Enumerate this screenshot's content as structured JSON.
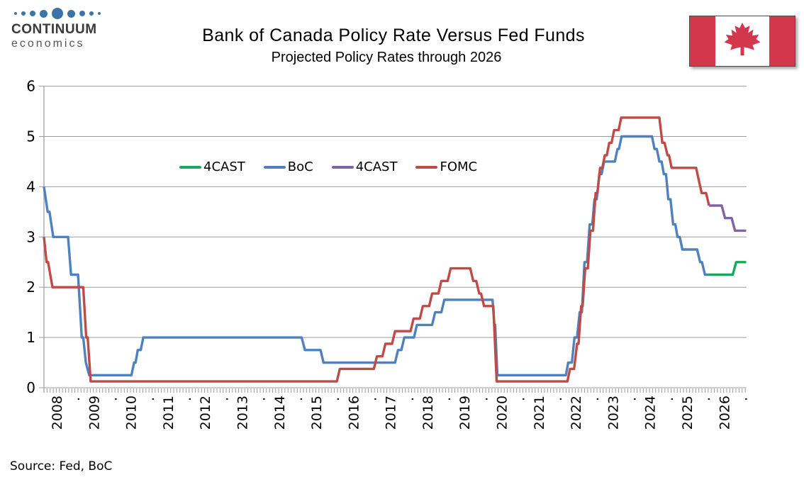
{
  "header": {
    "logo": {
      "line1": "CONTINUUM",
      "line2": "economics",
      "dot_color": "#3c74a8",
      "dot_sizes": [
        4,
        6,
        8,
        11,
        16,
        11,
        8,
        6,
        4
      ]
    },
    "title": "Bank of Canada Policy Rate Versus Fed Funds",
    "subtitle": "Projected Policy Rates through 2026",
    "flag": {
      "band_color": "#d2374c",
      "leaf_color": "#d2374c"
    }
  },
  "source_note": "Source: Fed, BoC",
  "chart_data": {
    "type": "line",
    "title": "Bank of Canada Policy Rate Versus Fed Funds",
    "subtitle": "Projected Policy Rates through 2026",
    "xlabel": "",
    "ylabel": "",
    "xlim": [
      2008,
      2026.95
    ],
    "ylim": [
      0,
      6
    ],
    "yticks": [
      0,
      1,
      2,
      3,
      4,
      5,
      6
    ],
    "x_year_labels": [
      2008,
      2009,
      2010,
      2011,
      2012,
      2013,
      2014,
      2015,
      2016,
      2017,
      2018,
      2019,
      2020,
      2021,
      2022,
      2023,
      2024,
      2025,
      2026
    ],
    "x_between_year_marker": ".",
    "x_minor_tick_interval_years": 0.08333,
    "grid": true,
    "grid_color": "#9b9b9b",
    "legend_position": "inside-upper-left",
    "legend": [
      {
        "label": "4CAST",
        "color": "#17a95b"
      },
      {
        "label": "BoC",
        "color": "#4e81bd"
      },
      {
        "label": "4CAST",
        "color": "#7f63a3"
      },
      {
        "label": "FOMC",
        "color": "#be4b48"
      }
    ],
    "series": [
      {
        "name": "BoC",
        "color": "#4e81bd",
        "points": [
          [
            2008.0,
            4.0
          ],
          [
            2008.1,
            3.5
          ],
          [
            2008.15,
            3.5
          ],
          [
            2008.25,
            3.0
          ],
          [
            2008.65,
            3.0
          ],
          [
            2008.73,
            2.25
          ],
          [
            2008.92,
            2.25
          ],
          [
            2009.02,
            1.0
          ],
          [
            2009.06,
            1.0
          ],
          [
            2009.13,
            0.5
          ],
          [
            2009.22,
            0.25
          ],
          [
            2010.36,
            0.25
          ],
          [
            2010.43,
            0.5
          ],
          [
            2010.47,
            0.5
          ],
          [
            2010.53,
            0.75
          ],
          [
            2010.61,
            0.75
          ],
          [
            2010.68,
            1.0
          ],
          [
            2014.95,
            1.0
          ],
          [
            2015.04,
            0.75
          ],
          [
            2015.46,
            0.75
          ],
          [
            2015.54,
            0.5
          ],
          [
            2017.47,
            0.5
          ],
          [
            2017.55,
            0.75
          ],
          [
            2017.64,
            0.75
          ],
          [
            2017.72,
            1.0
          ],
          [
            2017.98,
            1.0
          ],
          [
            2018.06,
            1.25
          ],
          [
            2018.47,
            1.25
          ],
          [
            2018.55,
            1.5
          ],
          [
            2018.72,
            1.5
          ],
          [
            2018.8,
            1.75
          ],
          [
            2020.1,
            1.75
          ],
          [
            2020.15,
            1.25
          ],
          [
            2020.17,
            1.25
          ],
          [
            2020.23,
            0.25
          ],
          [
            2022.08,
            0.25
          ],
          [
            2022.14,
            0.5
          ],
          [
            2022.24,
            0.5
          ],
          [
            2022.31,
            1.0
          ],
          [
            2022.38,
            1.0
          ],
          [
            2022.45,
            1.5
          ],
          [
            2022.51,
            1.5
          ],
          [
            2022.58,
            2.5
          ],
          [
            2022.65,
            2.5
          ],
          [
            2022.72,
            3.25
          ],
          [
            2022.79,
            3.25
          ],
          [
            2022.85,
            3.75
          ],
          [
            2022.91,
            3.75
          ],
          [
            2022.98,
            4.25
          ],
          [
            2023.04,
            4.25
          ],
          [
            2023.11,
            4.5
          ],
          [
            2023.4,
            4.5
          ],
          [
            2023.47,
            4.75
          ],
          [
            2023.51,
            4.75
          ],
          [
            2023.58,
            5.0
          ],
          [
            2024.4,
            5.0
          ],
          [
            2024.47,
            4.75
          ],
          [
            2024.53,
            4.75
          ],
          [
            2024.6,
            4.5
          ],
          [
            2024.66,
            4.5
          ],
          [
            2024.72,
            4.25
          ],
          [
            2024.78,
            4.25
          ],
          [
            2024.84,
            3.75
          ],
          [
            2024.9,
            3.75
          ],
          [
            2024.97,
            3.25
          ],
          [
            2025.03,
            3.25
          ],
          [
            2025.09,
            3.0
          ],
          [
            2025.15,
            3.0
          ],
          [
            2025.22,
            2.75
          ],
          [
            2025.62,
            2.75
          ],
          [
            2025.7,
            2.5
          ],
          [
            2025.75,
            2.5
          ],
          [
            2025.83,
            2.25
          ],
          [
            2025.92,
            2.25
          ]
        ]
      },
      {
        "name": "FOMC",
        "color": "#be4b48",
        "points": [
          [
            2008.0,
            3.0
          ],
          [
            2008.07,
            2.5
          ],
          [
            2008.11,
            2.5
          ],
          [
            2008.23,
            2.0
          ],
          [
            2009.06,
            2.0
          ],
          [
            2009.14,
            1.0
          ],
          [
            2009.18,
            1.0
          ],
          [
            2009.26,
            0.125
          ],
          [
            2015.9,
            0.125
          ],
          [
            2015.98,
            0.375
          ],
          [
            2016.9,
            0.375
          ],
          [
            2016.98,
            0.625
          ],
          [
            2017.13,
            0.625
          ],
          [
            2017.21,
            0.875
          ],
          [
            2017.39,
            0.875
          ],
          [
            2017.47,
            1.125
          ],
          [
            2017.89,
            1.125
          ],
          [
            2017.97,
            1.375
          ],
          [
            2018.14,
            1.375
          ],
          [
            2018.22,
            1.625
          ],
          [
            2018.39,
            1.625
          ],
          [
            2018.47,
            1.875
          ],
          [
            2018.64,
            1.875
          ],
          [
            2018.72,
            2.125
          ],
          [
            2018.89,
            2.125
          ],
          [
            2018.97,
            2.375
          ],
          [
            2019.5,
            2.375
          ],
          [
            2019.58,
            2.125
          ],
          [
            2019.66,
            2.125
          ],
          [
            2019.74,
            1.875
          ],
          [
            2019.79,
            1.875
          ],
          [
            2019.87,
            1.625
          ],
          [
            2020.12,
            1.625
          ],
          [
            2020.21,
            0.125
          ],
          [
            2022.12,
            0.125
          ],
          [
            2022.19,
            0.375
          ],
          [
            2022.3,
            0.375
          ],
          [
            2022.38,
            0.875
          ],
          [
            2022.42,
            0.875
          ],
          [
            2022.49,
            1.625
          ],
          [
            2022.53,
            1.625
          ],
          [
            2022.6,
            2.375
          ],
          [
            2022.67,
            2.375
          ],
          [
            2022.74,
            3.125
          ],
          [
            2022.81,
            3.125
          ],
          [
            2022.88,
            3.875
          ],
          [
            2022.93,
            3.875
          ],
          [
            2023.0,
            4.375
          ],
          [
            2023.06,
            4.375
          ],
          [
            2023.13,
            4.625
          ],
          [
            2023.18,
            4.625
          ],
          [
            2023.25,
            4.875
          ],
          [
            2023.31,
            4.875
          ],
          [
            2023.38,
            5.125
          ],
          [
            2023.5,
            5.125
          ],
          [
            2023.57,
            5.375
          ],
          [
            2024.6,
            5.375
          ],
          [
            2024.68,
            4.875
          ],
          [
            2024.74,
            4.875
          ],
          [
            2024.82,
            4.625
          ],
          [
            2024.86,
            4.625
          ],
          [
            2024.93,
            4.375
          ],
          [
            2025.59,
            4.375
          ],
          [
            2025.74,
            3.875
          ],
          [
            2025.86,
            3.875
          ],
          [
            2025.94,
            3.625
          ]
        ]
      },
      {
        "name": "4CAST",
        "color": "#17a95b",
        "points": [
          [
            2025.92,
            2.25
          ],
          [
            2026.58,
            2.25
          ],
          [
            2026.67,
            2.5
          ],
          [
            2026.94,
            2.5
          ]
        ]
      },
      {
        "name": "4CAST",
        "color": "#7f63a3",
        "points": [
          [
            2025.94,
            3.625
          ],
          [
            2026.28,
            3.625
          ],
          [
            2026.37,
            3.375
          ],
          [
            2026.55,
            3.375
          ],
          [
            2026.64,
            3.125
          ],
          [
            2026.94,
            3.125
          ]
        ]
      }
    ]
  }
}
